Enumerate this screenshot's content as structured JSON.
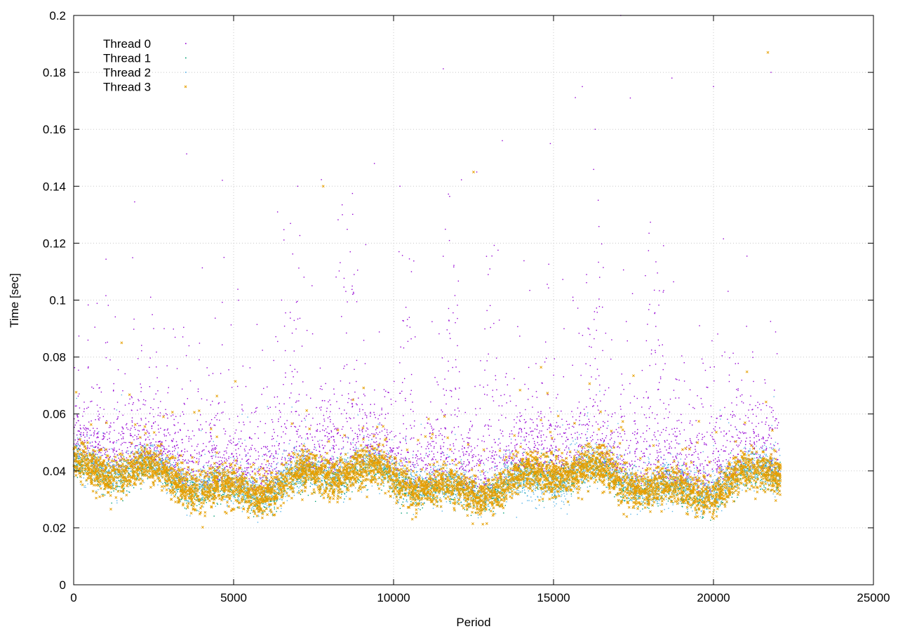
{
  "chart_data": {
    "type": "scatter",
    "title": "",
    "xlabel": "Period",
    "ylabel": "Time [sec]",
    "xlim": [
      0,
      25000
    ],
    "ylim": [
      0,
      0.2
    ],
    "x_ticks": [
      0,
      5000,
      10000,
      15000,
      20000,
      25000
    ],
    "x_tick_labels": [
      "0",
      "5000",
      "10000",
      "15000",
      "20000",
      "25000"
    ],
    "y_ticks": [
      0,
      0.02,
      0.04,
      0.06,
      0.08,
      0.1,
      0.12,
      0.14,
      0.16,
      0.18,
      0.2
    ],
    "y_tick_labels": [
      "0",
      "0.02",
      "0.04",
      "0.06",
      "0.08",
      "0.1",
      "0.12",
      "0.14",
      "0.16",
      "0.18",
      "0.2"
    ],
    "grid": true,
    "legend_position": "top-left",
    "series": [
      {
        "name": "Thread 0",
        "color": "#9400d3",
        "marker": "dot",
        "summary": {
          "x_range": [
            0,
            22100
          ],
          "typical_y": 0.038,
          "max_y": 0.2
        },
        "sample_points": [
          [
            1000,
            0.085
          ],
          [
            2500,
            0.09
          ],
          [
            4700,
            0.115
          ],
          [
            6500,
            0.1
          ],
          [
            7000,
            0.14
          ],
          [
            8400,
            0.13
          ],
          [
            9400,
            0.148
          ],
          [
            10200,
            0.14
          ],
          [
            12600,
            0.145
          ],
          [
            13400,
            0.156
          ],
          [
            14900,
            0.155
          ],
          [
            15900,
            0.175
          ],
          [
            16300,
            0.16
          ],
          [
            17100,
            0.2
          ],
          [
            17400,
            0.171
          ],
          [
            18700,
            0.178
          ],
          [
            20000,
            0.175
          ],
          [
            21800,
            0.18
          ]
        ]
      },
      {
        "name": "Thread 1",
        "color": "#009e73",
        "marker": "dot",
        "summary": {
          "x_range": [
            0,
            22100
          ],
          "typical_y": 0.036,
          "max_y": 0.06
        },
        "sample_points": [
          [
            100,
            0.042
          ],
          [
            3700,
            0.036
          ],
          [
            7000,
            0.037
          ],
          [
            10500,
            0.035
          ],
          [
            14500,
            0.034
          ],
          [
            18000,
            0.036
          ],
          [
            22000,
            0.034
          ]
        ]
      },
      {
        "name": "Thread 2",
        "color": "#56b4e9",
        "marker": "dot",
        "summary": {
          "x_range": [
            0,
            22100
          ],
          "typical_y": 0.037,
          "max_y": 0.07
        },
        "sample_points": [
          [
            100,
            0.041
          ],
          [
            2000,
            0.038
          ],
          [
            6000,
            0.035
          ],
          [
            10000,
            0.036
          ],
          [
            14500,
            0.031
          ],
          [
            18000,
            0.036
          ],
          [
            22000,
            0.033
          ]
        ]
      },
      {
        "name": "Thread 3",
        "color": "#e69f00",
        "marker": "x",
        "summary": {
          "x_range": [
            0,
            22100
          ],
          "typical_y": 0.036,
          "max_y": 0.187
        },
        "sample_points": [
          [
            300,
            0.042
          ],
          [
            1500,
            0.085
          ],
          [
            3700,
            0.03
          ],
          [
            7800,
            0.14
          ],
          [
            12500,
            0.145
          ],
          [
            15200,
            0.035
          ],
          [
            21700,
            0.187
          ],
          [
            22000,
            0.032
          ]
        ]
      }
    ]
  }
}
